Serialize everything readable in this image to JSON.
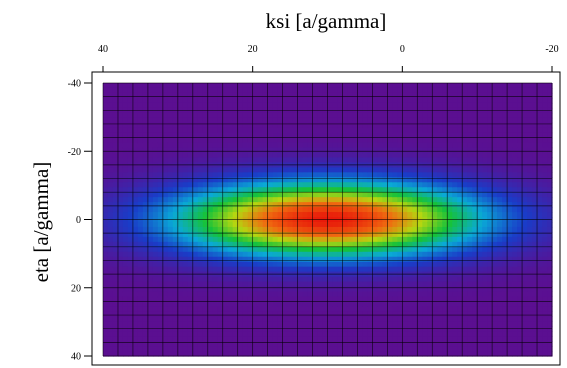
{
  "chart_data": {
    "type": "heatmap",
    "title": "",
    "xlabel": "ksi [a/gamma]",
    "ylabel": "eta [a/gamma]",
    "x_ticks": [
      "40",
      "20",
      "0",
      "-20"
    ],
    "y_ticks": [
      "-40",
      "-20",
      "0",
      "20",
      "40"
    ],
    "xlim": [
      40,
      -20
    ],
    "ylim": [
      -40,
      40
    ],
    "x_axis_position": "top",
    "x_reversed": true,
    "y_reversed": true,
    "grid": true,
    "grid_step": [
      2,
      4
    ],
    "colorscale": [
      "#5b0f91",
      "#1a3cc8",
      "#0aa9d6",
      "#16c23a",
      "#b5d611",
      "#f06a10",
      "#e81a0a"
    ],
    "peak": {
      "ksi": 10,
      "eta": 0
    },
    "spread": {
      "ksi": 14,
      "eta": 7.5
    },
    "model": "gaussian"
  }
}
